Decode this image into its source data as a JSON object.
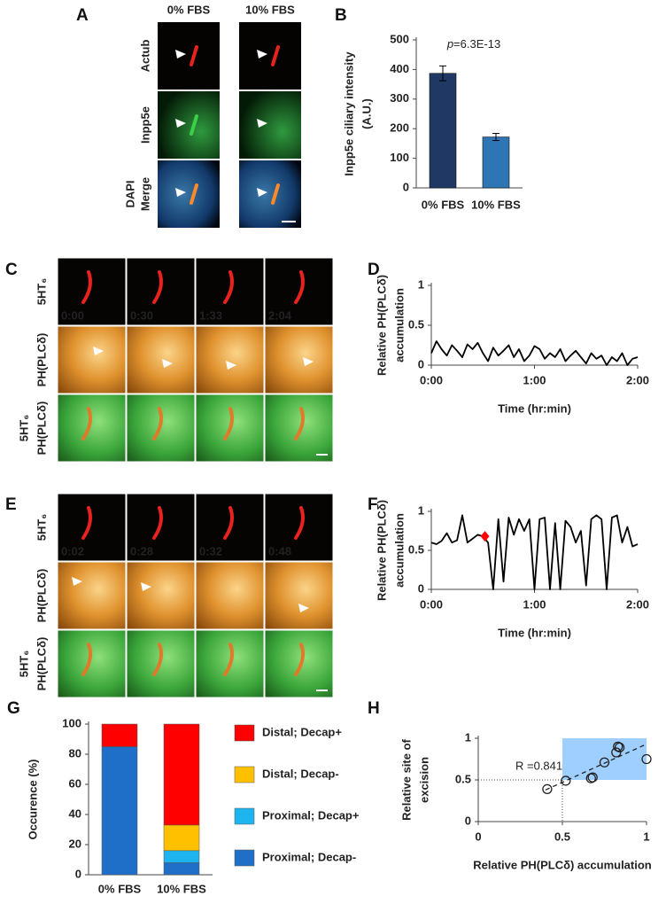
{
  "image_panels": {
    "A": {
      "label": "A",
      "columns": [
        "0% FBS",
        "10% FBS"
      ],
      "rows": [
        "Actub",
        "Inpp5e"
      ],
      "merge": [
        "DAPI",
        "Merge"
      ]
    },
    "C": {
      "label": "C",
      "times": [
        "0:00",
        "0:30",
        "1:33",
        "2:04"
      ],
      "rows": [
        "5HT₆",
        "PH(PLCδ)"
      ],
      "merge": [
        "5HT₆",
        "PH(PLCδ)"
      ]
    },
    "E": {
      "label": "E",
      "times": [
        "0:02",
        "0:28",
        "0:32",
        "0:48"
      ],
      "rows": [
        "5HT₆",
        "PH(PLCδ)"
      ],
      "merge": [
        "5HT₆",
        "PH(PLCδ)"
      ]
    }
  },
  "chart_data": [
    {
      "type": "bar",
      "panel": "B",
      "categories": [
        "0% FBS",
        "10% FBS"
      ],
      "values": [
        387,
        172
      ],
      "errors": [
        25,
        12
      ],
      "colors": [
        "#1f3864",
        "#2e75b6"
      ],
      "ylim": [
        0,
        500
      ],
      "yticks": [
        0,
        100,
        200,
        300,
        400,
        500
      ],
      "ylabel": [
        "Inpp5e ciliary intensity",
        "(A.U.)"
      ],
      "annotation": [
        "p",
        "=6.3E-13"
      ]
    },
    {
      "type": "line",
      "panel": "D",
      "color": "#000000",
      "x": [
        0,
        0.05,
        0.1,
        0.15,
        0.2,
        0.25,
        0.3,
        0.35,
        0.4,
        0.45,
        0.5,
        0.55,
        0.6,
        0.65,
        0.7,
        0.75,
        0.8,
        0.85,
        0.9,
        0.95,
        1,
        1.05,
        1.1,
        1.15,
        1.2,
        1.25,
        1.3,
        1.35,
        1.4,
        1.45,
        1.5,
        1.55,
        1.6,
        1.65,
        1.7,
        1.75,
        1.8,
        1.85,
        1.9,
        1.95,
        2
      ],
      "values": [
        0.15,
        0.3,
        0.2,
        0.12,
        0.25,
        0.18,
        0.1,
        0.26,
        0.2,
        0.28,
        0.15,
        0.05,
        0.22,
        0.12,
        0.18,
        0.25,
        0.1,
        0.2,
        0.05,
        0.12,
        0.24,
        0.2,
        0.08,
        0.15,
        0.1,
        0.2,
        0.05,
        0.12,
        0.18,
        0.1,
        0.02,
        0.15,
        0.08,
        0.12,
        0,
        0.1,
        0.05,
        0.15,
        0,
        0.08,
        0.1
      ],
      "xlim": [
        0,
        2
      ],
      "xticks": [
        {
          "value": 0,
          "label": "0:00"
        },
        {
          "value": 1,
          "label": "1:00"
        },
        {
          "value": 2,
          "label": "2:00"
        }
      ],
      "ylim": [
        0,
        1
      ],
      "yticks": [
        0,
        0.5,
        1
      ],
      "xlabel": "Time (hr:min)",
      "ylabel": [
        "Relative PH(PLCδ)",
        "accumulation"
      ]
    },
    {
      "type": "line",
      "panel": "F",
      "color": "#000000",
      "x": [
        0,
        0.05,
        0.1,
        0.15,
        0.2,
        0.25,
        0.3,
        0.35,
        0.4,
        0.45,
        0.5,
        0.55,
        0.6,
        0.65,
        0.7,
        0.75,
        0.8,
        0.85,
        0.9,
        0.95,
        1,
        1.05,
        1.1,
        1.15,
        1.2,
        1.25,
        1.3,
        1.35,
        1.4,
        1.45,
        1.5,
        1.55,
        1.6,
        1.65,
        1.7,
        1.75,
        1.8,
        1.85,
        1.9,
        1.95,
        2
      ],
      "values": [
        0.6,
        0.58,
        0.62,
        0.72,
        0.6,
        0.63,
        0.95,
        0.6,
        0.65,
        0.7,
        0.68,
        0.6,
        0,
        0.9,
        0.1,
        0.92,
        0.7,
        0.9,
        0.75,
        0.9,
        0,
        0.9,
        0.92,
        0,
        0.85,
        0,
        0.88,
        0.8,
        0.6,
        0.75,
        0.05,
        0.9,
        0.95,
        0.9,
        0,
        0.92,
        0.95,
        0.6,
        0.8,
        0.55,
        0.58
      ],
      "highlight": {
        "x": 0.52,
        "y": 0.68,
        "color": "#ff0000"
      },
      "xlim": [
        0,
        2
      ],
      "xticks": [
        {
          "value": 0,
          "label": "0:00"
        },
        {
          "value": 1,
          "label": "1:00"
        },
        {
          "value": 2,
          "label": "2:00"
        }
      ],
      "ylim": [
        0,
        1
      ],
      "yticks": [
        0,
        0.5,
        1
      ],
      "xlabel": "Time (hr:min)",
      "ylabel": [
        "Relative PH(PLCδ)",
        "accumulation"
      ]
    },
    {
      "type": "stacked_bar",
      "panel": "G",
      "categories": [
        "0% FBS",
        "10% FBS"
      ],
      "series": [
        {
          "name": "Proximal; Decap-",
          "color": "#1f6fc8",
          "values": [
            85,
            8
          ]
        },
        {
          "name": "Proximal; Decap+",
          "color": "#1eb4ef",
          "values": [
            0,
            8
          ]
        },
        {
          "name": "Distal; Decap-",
          "color": "#ffc000",
          "values": [
            0,
            17
          ]
        },
        {
          "name": "Distal; Decap+",
          "color": "#ff0000",
          "values": [
            15,
            67
          ]
        }
      ],
      "ylim": [
        0,
        100
      ],
      "yticks": [
        0,
        20,
        40,
        60,
        80,
        100
      ],
      "ylabel": [
        "Occurence (%)"
      ]
    },
    {
      "type": "scatter",
      "panel": "H",
      "x": [
        0.41,
        0.52,
        0.67,
        0.68,
        0.75,
        0.82,
        0.83,
        0.84,
        1
      ],
      "y": [
        0.39,
        0.49,
        0.52,
        0.53,
        0.71,
        0.83,
        0.9,
        0.89,
        0.75
      ],
      "region": {
        "x": [
          0.5,
          1
        ],
        "y": [
          0.5,
          1
        ],
        "color": "#9fcfff"
      },
      "trend": {
        "x": [
          0.4,
          1
        ],
        "y": [
          0.38,
          0.93
        ]
      },
      "xlim": [
        0,
        1
      ],
      "xticks": [
        0,
        0.5,
        1
      ],
      "ylim": [
        0,
        1
      ],
      "yticks": [
        0,
        0.5,
        1
      ],
      "annotation": "R =0.841",
      "xlabel": "Relative PH(PLCδ) accumulation",
      "ylabel": [
        "Relative site of",
        "excision"
      ]
    }
  ]
}
